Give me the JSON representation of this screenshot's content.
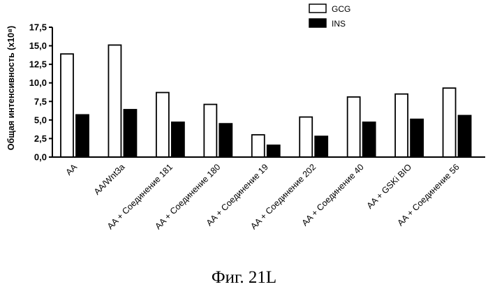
{
  "caption": "Фиг. 21L",
  "chart_data": {
    "type": "bar",
    "ylabel": "Общая интенсивность (x10⁸)",
    "ylim": [
      0,
      17.5
    ],
    "yticks": [
      "0,0",
      "2,5",
      "5,0",
      "7,5",
      "10,0",
      "12,5",
      "15,0",
      "17,5"
    ],
    "legend_position": "top-right",
    "categories": [
      "AA",
      "AA/Wnt3a",
      "AA + Соединение 181",
      "AA + Соединение 180",
      "AA + Соединение 19",
      "AA + Соединение 202",
      "AA + Соединение 40",
      "AA + GSKi BIO",
      "AA + Соединение 56"
    ],
    "series": [
      {
        "name": "GCG",
        "color": "#ffffff",
        "values": [
          13.9,
          15.1,
          8.7,
          7.1,
          3.0,
          5.4,
          8.1,
          8.5,
          9.3
        ]
      },
      {
        "name": "INS",
        "color": "#000000",
        "values": [
          5.7,
          6.4,
          4.7,
          4.5,
          1.6,
          2.8,
          4.7,
          5.1,
          5.6
        ]
      }
    ]
  }
}
